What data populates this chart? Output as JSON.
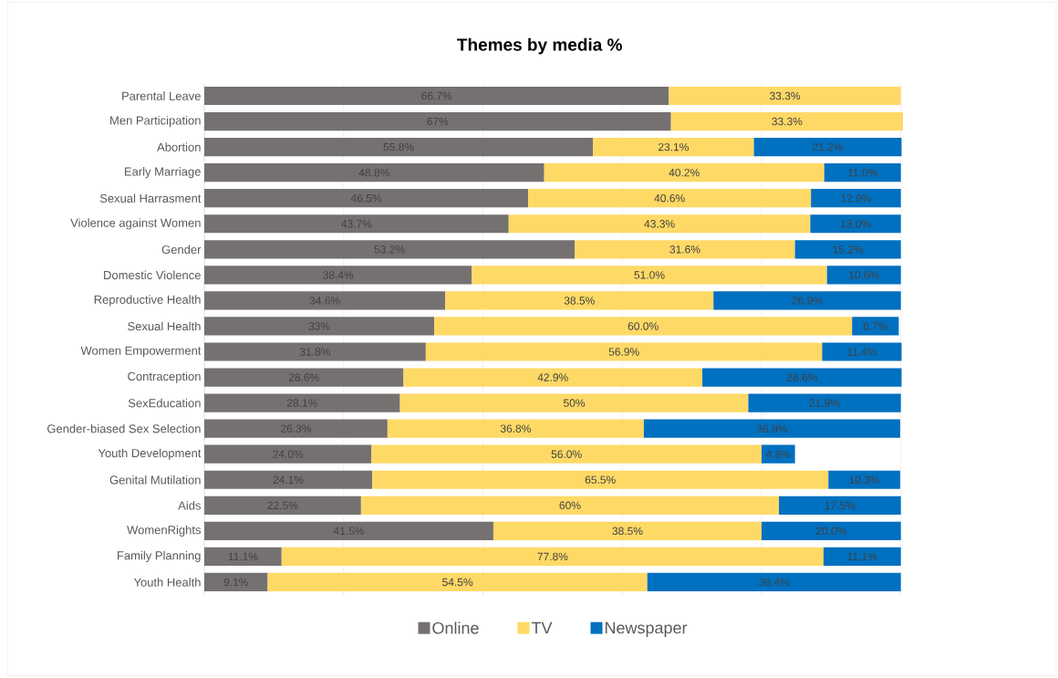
{
  "chart_data": {
    "type": "bar",
    "orientation": "horizontal",
    "stacked": true,
    "title": "Themes by media %",
    "categories": [
      "Parental Leave",
      "Men Participation",
      "Abortion",
      "Early Marriage",
      "Sexual Harrasment",
      "Violence against Women",
      "Gender",
      "Domestic Violence",
      "Reproductive Health",
      "Sexual Health",
      "Women Empowerment",
      "Contraception",
      "SexEducation",
      "Gender-biased Sex Selection",
      "Youth Development",
      "Genital Mutilation",
      "Aids",
      "WomenRights",
      "Family Planning",
      "Youth Health"
    ],
    "series": [
      {
        "name": "Online",
        "color": "#767171",
        "values": [
          66.7,
          67,
          55.8,
          48.8,
          46.5,
          43.7,
          53.2,
          38.4,
          34.6,
          33,
          31.8,
          28.6,
          28.1,
          26.3,
          24.0,
          24.1,
          22.5,
          41.5,
          11.1,
          9.1
        ],
        "value_labels": [
          "66.7%",
          "67%",
          "55.8%",
          "48.8%",
          "46.5%",
          "43.7%",
          "53.2%",
          "38.4%",
          "34.6%",
          "33%",
          "31.8%",
          "28.6%",
          "28.1%",
          "26.3%",
          "24.0%",
          "24.1%",
          "22.5%",
          "41.5%",
          "11.1%",
          "9.1%"
        ]
      },
      {
        "name": "TV",
        "color": "#ffd966",
        "values": [
          33.3,
          33.3,
          23.1,
          40.2,
          40.6,
          43.3,
          31.6,
          51.0,
          38.5,
          60.0,
          56.9,
          42.9,
          50,
          36.8,
          56.0,
          65.5,
          60,
          38.5,
          77.8,
          54.5
        ],
        "value_labels": [
          "33.3%",
          "33.3%",
          "23.1%",
          "40.2%",
          "40.6%",
          "43.3%",
          "31.6%",
          "51.0%",
          "38.5%",
          "60.0%",
          "56.9%",
          "42.9%",
          "50%",
          "36.8%",
          "56.0%",
          "65.5%",
          "60%",
          "38.5%",
          "77.8%",
          "54.5%"
        ]
      },
      {
        "name": "Newspaper",
        "color": "#0070c0",
        "values": [
          null,
          null,
          21.2,
          11.0,
          12.9,
          13.0,
          15.2,
          10.6,
          26.9,
          6.7,
          11.4,
          28.6,
          21.9,
          36.8,
          4.8,
          10.3,
          17.5,
          20.0,
          11.1,
          36.4
        ],
        "value_labels": [
          null,
          null,
          "21.2%",
          "11.0%",
          "12.9%",
          "13.0%",
          "15.2%",
          "10.6%",
          "26.9%",
          "6.7%",
          "11.4%",
          "28.6%",
          "21.9%",
          "36.8%",
          "4.8%",
          "10.3%",
          "17.5%",
          "20.0%",
          "11.1%",
          "36.4%"
        ]
      }
    ],
    "xlim": [
      0,
      100.3
    ],
    "xticks": [
      {
        "value": 0,
        "label": null
      },
      {
        "value": 20,
        "label": null
      },
      {
        "value": 40,
        "label": null
      },
      {
        "value": 60,
        "label": null
      },
      {
        "value": 80,
        "label": null
      },
      {
        "value": 100,
        "label": null
      }
    ],
    "tick_labels": "y",
    "grid": "x",
    "legend": "bottom"
  }
}
